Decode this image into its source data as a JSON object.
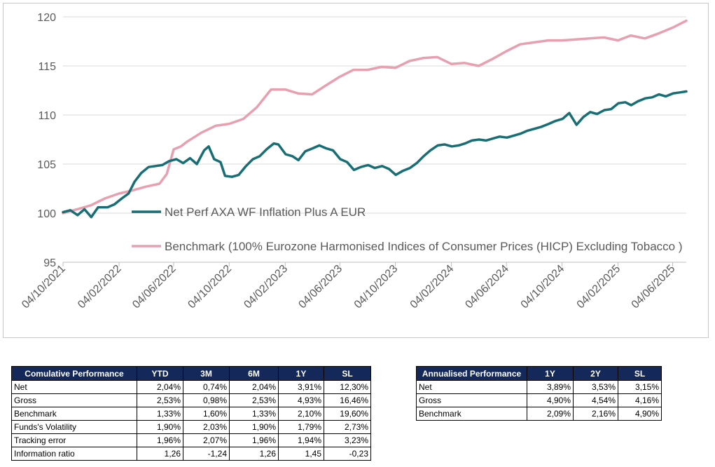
{
  "chart_data": {
    "type": "line",
    "ylim": [
      95,
      120
    ],
    "yticks": [
      "95",
      "100",
      "105",
      "110",
      "115",
      "120"
    ],
    "xticks": [
      "04/10/2021",
      "04/02/2022",
      "04/06/2022",
      "04/10/2022",
      "04/02/2023",
      "04/06/2023",
      "04/10/2023",
      "04/02/2024",
      "04/06/2024",
      "04/10/2024",
      "04/02/2025",
      "04/06/2025"
    ],
    "x_start": "04/10/2021",
    "x_end": "04/07/2025",
    "grid": "horizontal",
    "legend_position": "center-right",
    "series": [
      {
        "name": "Net Perf AXA WF Inflation Plus A EUR",
        "color": "#176e75",
        "points": [
          [
            "2021-10-04",
            100.1
          ],
          [
            "2021-10-20",
            100.3
          ],
          [
            "2021-11-05",
            99.8
          ],
          [
            "2021-11-20",
            100.4
          ],
          [
            "2021-12-05",
            99.6
          ],
          [
            "2021-12-20",
            100.6
          ],
          [
            "2022-01-10",
            100.6
          ],
          [
            "2022-01-25",
            100.9
          ],
          [
            "2022-02-10",
            101.5
          ],
          [
            "2022-02-25",
            102.0
          ],
          [
            "2022-03-10",
            103.2
          ],
          [
            "2022-03-25",
            104.1
          ],
          [
            "2022-04-10",
            104.7
          ],
          [
            "2022-04-25",
            104.8
          ],
          [
            "2022-05-10",
            104.9
          ],
          [
            "2022-05-25",
            105.3
          ],
          [
            "2022-06-10",
            105.5
          ],
          [
            "2022-06-25",
            105.1
          ],
          [
            "2022-07-10",
            105.6
          ],
          [
            "2022-07-25",
            105.0
          ],
          [
            "2022-08-10",
            106.4
          ],
          [
            "2022-08-20",
            106.8
          ],
          [
            "2022-09-01",
            105.5
          ],
          [
            "2022-09-15",
            105.2
          ],
          [
            "2022-09-25",
            103.8
          ],
          [
            "2022-10-10",
            103.7
          ],
          [
            "2022-10-25",
            103.9
          ],
          [
            "2022-11-10",
            104.8
          ],
          [
            "2022-11-25",
            105.5
          ],
          [
            "2022-12-10",
            105.8
          ],
          [
            "2022-12-25",
            106.5
          ],
          [
            "2023-01-10",
            107.1
          ],
          [
            "2023-01-20",
            107.0
          ],
          [
            "2023-02-05",
            106.0
          ],
          [
            "2023-02-20",
            105.8
          ],
          [
            "2023-03-05",
            105.4
          ],
          [
            "2023-03-20",
            106.3
          ],
          [
            "2023-04-05",
            106.6
          ],
          [
            "2023-04-20",
            106.9
          ],
          [
            "2023-05-05",
            106.6
          ],
          [
            "2023-05-20",
            106.4
          ],
          [
            "2023-06-05",
            105.5
          ],
          [
            "2023-06-20",
            105.2
          ],
          [
            "2023-07-05",
            104.4
          ],
          [
            "2023-07-20",
            104.7
          ],
          [
            "2023-08-05",
            104.9
          ],
          [
            "2023-08-20",
            104.6
          ],
          [
            "2023-09-05",
            104.8
          ],
          [
            "2023-09-20",
            104.5
          ],
          [
            "2023-10-05",
            103.9
          ],
          [
            "2023-10-20",
            104.3
          ],
          [
            "2023-11-05",
            104.6
          ],
          [
            "2023-11-20",
            105.1
          ],
          [
            "2023-12-05",
            105.8
          ],
          [
            "2023-12-20",
            106.4
          ],
          [
            "2024-01-05",
            106.9
          ],
          [
            "2024-01-20",
            107.0
          ],
          [
            "2024-02-05",
            106.8
          ],
          [
            "2024-02-20",
            106.9
          ],
          [
            "2024-03-05",
            107.1
          ],
          [
            "2024-03-20",
            107.4
          ],
          [
            "2024-04-05",
            107.5
          ],
          [
            "2024-04-20",
            107.4
          ],
          [
            "2024-05-05",
            107.6
          ],
          [
            "2024-05-20",
            107.8
          ],
          [
            "2024-06-05",
            107.7
          ],
          [
            "2024-06-20",
            107.9
          ],
          [
            "2024-07-05",
            108.1
          ],
          [
            "2024-07-20",
            108.4
          ],
          [
            "2024-08-05",
            108.6
          ],
          [
            "2024-08-20",
            108.8
          ],
          [
            "2024-09-05",
            109.1
          ],
          [
            "2024-09-20",
            109.4
          ],
          [
            "2024-10-05",
            109.6
          ],
          [
            "2024-10-20",
            110.2
          ],
          [
            "2024-11-05",
            109.0
          ],
          [
            "2024-11-20",
            109.8
          ],
          [
            "2024-12-05",
            110.3
          ],
          [
            "2024-12-20",
            110.1
          ],
          [
            "2025-01-05",
            110.5
          ],
          [
            "2025-01-20",
            110.6
          ],
          [
            "2025-02-05",
            111.2
          ],
          [
            "2025-02-20",
            111.3
          ],
          [
            "2025-03-05",
            111.0
          ],
          [
            "2025-03-20",
            111.4
          ],
          [
            "2025-04-05",
            111.7
          ],
          [
            "2025-04-20",
            111.8
          ],
          [
            "2025-05-05",
            112.1
          ],
          [
            "2025-05-20",
            111.9
          ],
          [
            "2025-06-05",
            112.2
          ],
          [
            "2025-06-20",
            112.3
          ],
          [
            "2025-07-04",
            112.4
          ]
        ]
      },
      {
        "name": "Benchmark (100% Eurozone Harmonised Indices of Consumer Prices (HICP) Excluding Tobacco  )",
        "color": "#e8a0b0",
        "points": [
          [
            "2021-10-04",
            100.0
          ],
          [
            "2021-11-04",
            100.4
          ],
          [
            "2021-12-04",
            100.8
          ],
          [
            "2022-01-04",
            101.5
          ],
          [
            "2022-02-04",
            102.0
          ],
          [
            "2022-03-04",
            102.3
          ],
          [
            "2022-04-04",
            102.7
          ],
          [
            "2022-05-04",
            103.0
          ],
          [
            "2022-05-20",
            104.0
          ],
          [
            "2022-06-04",
            106.5
          ],
          [
            "2022-06-20",
            106.8
          ],
          [
            "2022-07-04",
            107.3
          ],
          [
            "2022-08-04",
            108.2
          ],
          [
            "2022-09-04",
            108.9
          ],
          [
            "2022-10-04",
            109.1
          ],
          [
            "2022-11-04",
            109.6
          ],
          [
            "2022-12-04",
            110.8
          ],
          [
            "2023-01-04",
            112.6
          ],
          [
            "2023-02-04",
            112.6
          ],
          [
            "2023-03-04",
            112.2
          ],
          [
            "2023-04-04",
            112.1
          ],
          [
            "2023-05-04",
            113.0
          ],
          [
            "2023-06-04",
            113.9
          ],
          [
            "2023-07-04",
            114.6
          ],
          [
            "2023-08-04",
            114.6
          ],
          [
            "2023-09-04",
            114.9
          ],
          [
            "2023-10-04",
            114.8
          ],
          [
            "2023-11-04",
            115.5
          ],
          [
            "2023-12-04",
            115.8
          ],
          [
            "2024-01-04",
            115.9
          ],
          [
            "2024-02-04",
            115.2
          ],
          [
            "2024-03-04",
            115.3
          ],
          [
            "2024-04-04",
            115.0
          ],
          [
            "2024-05-04",
            115.7
          ],
          [
            "2024-06-04",
            116.5
          ],
          [
            "2024-07-04",
            117.2
          ],
          [
            "2024-08-04",
            117.4
          ],
          [
            "2024-09-04",
            117.6
          ],
          [
            "2024-10-04",
            117.6
          ],
          [
            "2024-11-04",
            117.7
          ],
          [
            "2024-12-04",
            117.8
          ],
          [
            "2025-01-04",
            117.9
          ],
          [
            "2025-02-04",
            117.6
          ],
          [
            "2025-03-04",
            118.1
          ],
          [
            "2025-04-04",
            117.8
          ],
          [
            "2025-05-04",
            118.3
          ],
          [
            "2025-06-04",
            118.9
          ],
          [
            "2025-07-04",
            119.6
          ]
        ]
      }
    ]
  },
  "cumulative": {
    "headers": [
      "Comulative Performance",
      "YTD",
      "3M",
      "6M",
      "1Y",
      "SL"
    ],
    "rows": [
      [
        "Net",
        "2,04%",
        "0,74%",
        "2,04%",
        "3,91%",
        "12,30%"
      ],
      [
        "Gross",
        "2,53%",
        "0,98%",
        "2,53%",
        "4,93%",
        "16,46%"
      ],
      [
        "Benchmark",
        "1,33%",
        "1,60%",
        "1,33%",
        "2,10%",
        "19,60%"
      ],
      [
        "Funds's Volatility",
        "1,90%",
        "2,03%",
        "1,90%",
        "1,79%",
        "2,73%"
      ],
      [
        "Tracking error",
        "1,96%",
        "2,07%",
        "1,96%",
        "1,94%",
        "3,23%"
      ],
      [
        "Information ratio",
        "1,26",
        "-1,24",
        "1,26",
        "1,45",
        "-0,23"
      ]
    ]
  },
  "annualised": {
    "headers": [
      "Annualised Performance",
      "1Y",
      "2Y",
      "SL"
    ],
    "rows": [
      [
        "Net",
        "3,89%",
        "3,53%",
        "3,15%"
      ],
      [
        "Gross",
        "4,90%",
        "4,54%",
        "4,16%"
      ],
      [
        "Benchmark",
        "2,09%",
        "2,16%",
        "4,90%"
      ]
    ]
  }
}
